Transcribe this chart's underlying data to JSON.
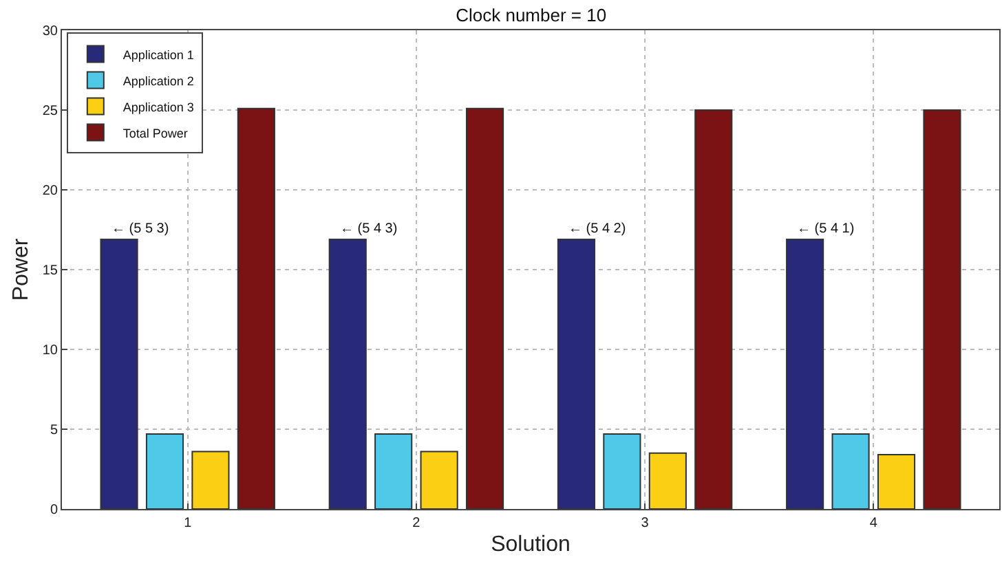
{
  "chart_data": {
    "type": "bar",
    "title": "Clock number = 10",
    "xlabel": "Solution",
    "ylabel": "Power",
    "categories": [
      "1",
      "2",
      "3",
      "4"
    ],
    "series": [
      {
        "name": "Application 1",
        "color": "#29297a",
        "values": [
          16.9,
          16.9,
          16.9,
          16.9
        ]
      },
      {
        "name": "Application 2",
        "color": "#50c8e8",
        "values": [
          4.7,
          4.7,
          4.7,
          4.7
        ]
      },
      {
        "name": "Application 3",
        "color": "#fbd014",
        "values": [
          3.6,
          3.6,
          3.5,
          3.4
        ]
      },
      {
        "name": "Total Power",
        "color": "#7b1214",
        "values": [
          25.1,
          25.1,
          25.0,
          25.0
        ]
      }
    ],
    "annotations": [
      "← (5 5 3)",
      "← (5 4 3)",
      "← (5 4 2)",
      "← (5 4 1)"
    ],
    "ylim": [
      0,
      30
    ],
    "yticks": [
      0,
      5,
      10,
      15,
      20,
      25,
      30
    ],
    "grid": true,
    "legend": "top left"
  }
}
